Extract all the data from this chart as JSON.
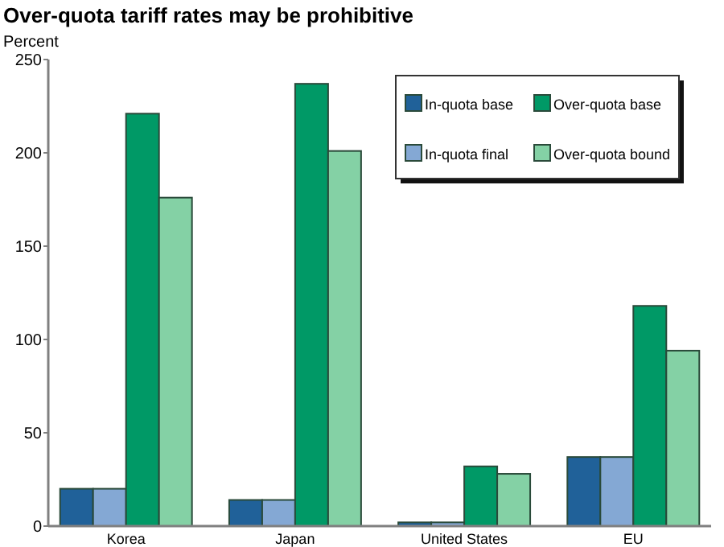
{
  "chart_data": {
    "type": "bar",
    "title": "Over-quota tariff rates may be prohibitive",
    "ylabel": "Percent",
    "categories": [
      "Korea",
      "Japan",
      "United States",
      "EU"
    ],
    "series": [
      {
        "name": "In-quota base",
        "color": "#206199",
        "values": [
          20,
          14,
          2,
          37
        ]
      },
      {
        "name": "In-quota final",
        "color": "#84a8d4",
        "values": [
          20,
          14,
          2,
          37
        ]
      },
      {
        "name": "Over-quota base",
        "color": "#009966",
        "values": [
          221,
          237,
          32,
          118
        ]
      },
      {
        "name": "Over-quota bound",
        "color": "#84d1a5",
        "values": [
          176,
          201,
          28,
          94
        ]
      }
    ],
    "ylim": [
      0,
      250
    ],
    "yticks": [
      0,
      50,
      100,
      150,
      200,
      250
    ],
    "grid": false,
    "legend": "top right"
  }
}
